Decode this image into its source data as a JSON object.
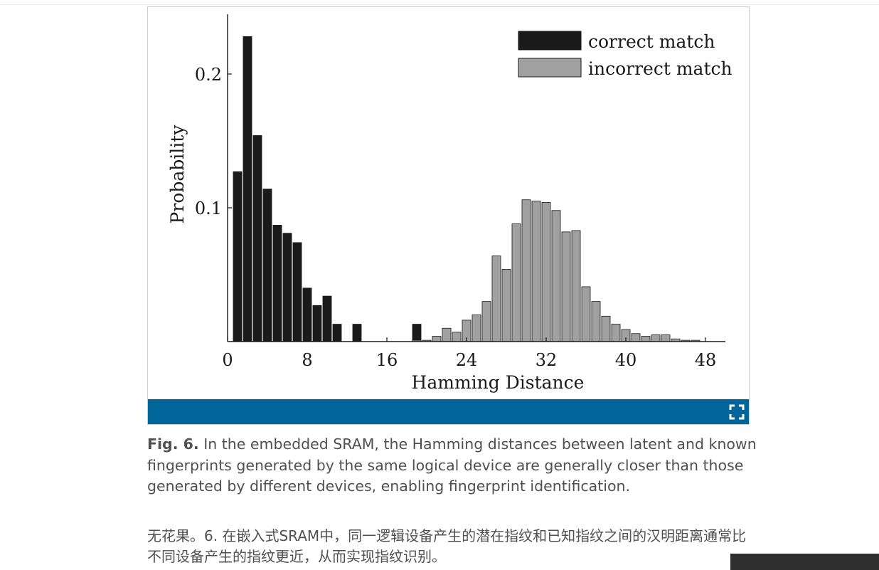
{
  "caption": {
    "label": "Fig. 6.",
    "text": " In the embedded SRAM, the Hamming distances between latent and known fingerprints generated by the same logical device are generally closer than those generated by different devices, enabling fingerprint identification.",
    "translation": "无花果。6. 在嵌入式SRAM中，同一逻辑设备产生的潜在指纹和已知指纹之间的汉明距离通常比不同设备产生的指纹更近，从而实现指纹识别。"
  },
  "icons": {
    "expand": "expand-icon"
  },
  "colors": {
    "figure_bar": "#006699",
    "correct": "#1a1a1a",
    "incorrect": "#a0a0a0"
  },
  "chart_data": {
    "type": "bar",
    "title": "",
    "xlabel": "Hamming Distance",
    "ylabel": "Probability",
    "xlim": [
      0,
      50
    ],
    "ylim": [
      0,
      0.25
    ],
    "x_ticks": [
      0,
      8,
      16,
      24,
      32,
      40,
      48
    ],
    "y_ticks": [
      0.1,
      0.2
    ],
    "legend_position": "top-right",
    "grid": false,
    "series": [
      {
        "name": "correct match",
        "color": "#1a1a1a",
        "x": [
          1,
          2,
          3,
          4,
          5,
          6,
          7,
          8,
          9,
          10,
          11,
          13,
          19
        ],
        "values": [
          0.127,
          0.228,
          0.154,
          0.114,
          0.087,
          0.081,
          0.074,
          0.04,
          0.027,
          0.034,
          0.013,
          0.013,
          0.013
        ]
      },
      {
        "name": "incorrect match",
        "color": "#a0a0a0",
        "x": [
          19,
          20,
          21,
          22,
          23,
          24,
          25,
          26,
          27,
          28,
          29,
          30,
          31,
          32,
          33,
          34,
          35,
          36,
          37,
          38,
          39,
          40,
          41,
          42,
          43,
          44,
          45,
          46,
          47
        ],
        "values": [
          0.001,
          0.001,
          0.004,
          0.01,
          0.007,
          0.016,
          0.02,
          0.03,
          0.064,
          0.054,
          0.088,
          0.106,
          0.105,
          0.104,
          0.098,
          0.082,
          0.083,
          0.041,
          0.03,
          0.019,
          0.013,
          0.009,
          0.006,
          0.004,
          0.005,
          0.005,
          0.002,
          0.001,
          0.001
        ]
      }
    ]
  }
}
